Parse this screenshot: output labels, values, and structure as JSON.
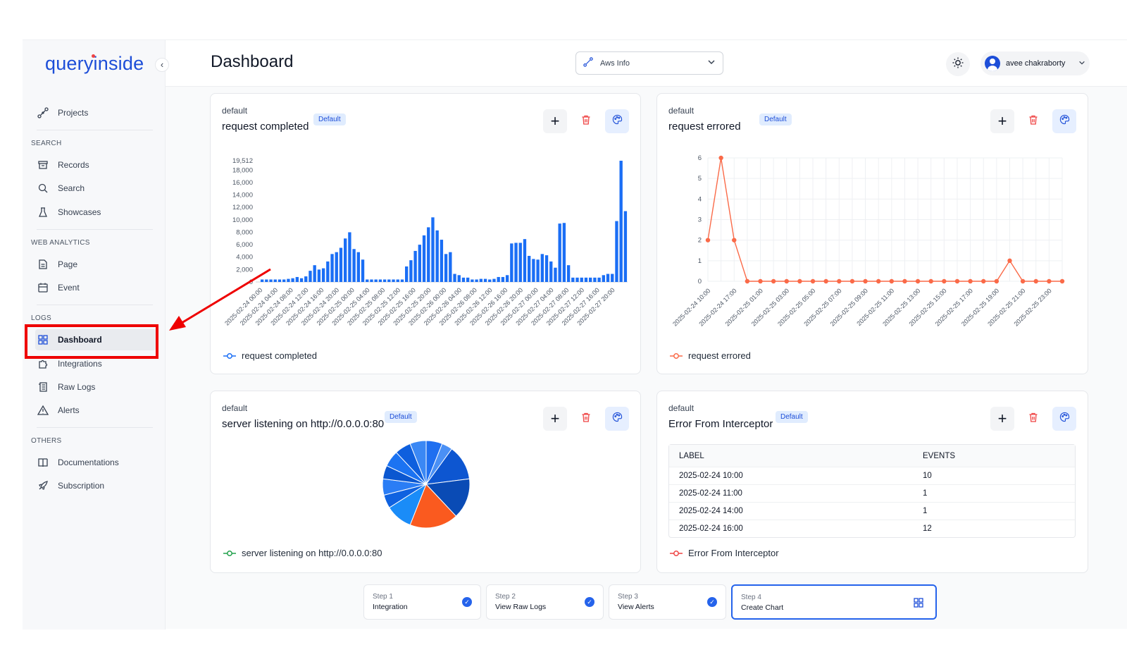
{
  "app": {
    "logo_text": "queryinside"
  },
  "sidebar": {
    "items": [
      {
        "label": "Projects",
        "icon": "flow-icon"
      }
    ],
    "sections": [
      {
        "title": "SEARCH",
        "items": [
          {
            "label": "Records",
            "icon": "archive-icon"
          },
          {
            "label": "Search",
            "icon": "search-icon"
          },
          {
            "label": "Showcases",
            "icon": "flask-icon"
          }
        ]
      },
      {
        "title": "WEB ANALYTICS",
        "items": [
          {
            "label": "Page",
            "icon": "document-icon"
          },
          {
            "label": "Event",
            "icon": "calendar-icon"
          }
        ]
      },
      {
        "title": "LOGS",
        "items": [
          {
            "label": "Dashboard",
            "icon": "dashboard-icon",
            "active": true
          },
          {
            "label": "Integrations",
            "icon": "puzzle-icon"
          },
          {
            "label": "Raw Logs",
            "icon": "scroll-icon"
          },
          {
            "label": "Alerts",
            "icon": "warning-icon"
          }
        ]
      },
      {
        "title": "OTHERS",
        "items": [
          {
            "label": "Documentations",
            "icon": "book-icon"
          },
          {
            "label": "Subscription",
            "icon": "rocket-icon"
          }
        ]
      }
    ]
  },
  "header": {
    "title": "Dashboard",
    "project_select": "Aws Info",
    "user_name": "avee chakraborty"
  },
  "colors": {
    "accent": "#1d4ed8",
    "bar": "#1a6ef5",
    "line": "#fa6a48",
    "highlight": "#ee0000"
  },
  "cards": [
    {
      "workspace": "default",
      "title": "request completed",
      "badge": "Default",
      "legend": "request completed"
    },
    {
      "workspace": "default",
      "title": "request errored",
      "badge": "Default",
      "legend": "request errored"
    },
    {
      "workspace": "default",
      "title": "server listening on http://0.0.0.0:80",
      "badge": "Default",
      "legend": "server listening on http://0.0.0.0:80"
    },
    {
      "workspace": "default",
      "title": "Error From Interceptor",
      "badge": "Default",
      "legend": "Error From Interceptor"
    }
  ],
  "table": {
    "headers": [
      "LABEL",
      "EVENTS"
    ],
    "rows": [
      [
        "2025-02-24 10:00",
        "10"
      ],
      [
        "2025-02-24 11:00",
        "1"
      ],
      [
        "2025-02-24 14:00",
        "1"
      ],
      [
        "2025-02-24 16:00",
        "12"
      ]
    ]
  },
  "steps": [
    {
      "step": "Step 1",
      "label": "Integration",
      "done": true
    },
    {
      "step": "Step 2",
      "label": "View Raw Logs",
      "done": true
    },
    {
      "step": "Step 3",
      "label": "View Alerts",
      "done": true
    },
    {
      "step": "Step 4",
      "label": "Create Chart",
      "done": false
    }
  ],
  "chart_data": [
    {
      "type": "bar",
      "title": "request completed",
      "ylim": [
        0,
        19512
      ],
      "yticks": [
        "19,512",
        "18,000",
        "16,000",
        "14,000",
        "12,000",
        "10,000",
        "8,000",
        "6,000",
        "4,000",
        "2,000",
        "0"
      ],
      "xticks": [
        "2025-02-24 00:00",
        "2025-02-24 04:00",
        "2025-02-24 08:00",
        "2025-02-24 12:00",
        "2025-02-24 16:00",
        "2025-02-24 20:00",
        "2025-02-25 00:00",
        "2025-02-25 04:00",
        "2025-02-25 08:00",
        "2025-02-25 12:00",
        "2025-02-25 16:00",
        "2025-02-25 20:00",
        "2025-02-26 00:00",
        "2025-02-26 04:00",
        "2025-02-26 08:00",
        "2025-02-26 12:00",
        "2025-02-26 16:00",
        "2025-02-26 20:00",
        "2025-02-27 00:00",
        "2025-02-27 04:00",
        "2025-02-27 08:00",
        "2025-02-27 12:00",
        "2025-02-27 16:00",
        "2025-02-27 20:00"
      ],
      "values": [
        400,
        400,
        400,
        400,
        400,
        400,
        500,
        600,
        800,
        600,
        900,
        1800,
        2700,
        2000,
        2200,
        3300,
        4500,
        4800,
        5500,
        7000,
        8000,
        5300,
        4800,
        3600,
        400,
        400,
        400,
        400,
        400,
        400,
        400,
        400,
        400,
        2500,
        3500,
        5000,
        6000,
        7500,
        8800,
        10400,
        8300,
        6800,
        4500,
        4800,
        1300,
        1100,
        700,
        700,
        400,
        400,
        500,
        500,
        400,
        500,
        800,
        800,
        1100,
        6200,
        6300,
        6300,
        6900,
        4200,
        3700,
        3600,
        4500,
        4300,
        3300,
        2300,
        9400,
        9500,
        2700,
        700,
        700,
        700,
        700,
        700,
        700,
        700,
        1100,
        1300,
        1300,
        9800,
        19512,
        11400
      ]
    },
    {
      "type": "line",
      "title": "request errored",
      "ylim": [
        0,
        6
      ],
      "yticks": [
        "6",
        "5",
        "4",
        "3",
        "2",
        "1",
        "0"
      ],
      "xticks": [
        "2025-02-24 10:00",
        "2025-02-24 17:00",
        "2025-02-25 01:00",
        "2025-02-25 03:00",
        "2025-02-25 05:00",
        "2025-02-25 07:00",
        "2025-02-25 09:00",
        "2025-02-25 11:00",
        "2025-02-25 13:00",
        "2025-02-25 15:00",
        "2025-02-25 17:00",
        "2025-02-25 19:00",
        "2025-02-25 21:00",
        "2025-02-25 23:00"
      ],
      "values": [
        2,
        6,
        2,
        0,
        0,
        0,
        0,
        0,
        0,
        0,
        0,
        0,
        0,
        0,
        0,
        0,
        0,
        0,
        0,
        0,
        0,
        0,
        0,
        1,
        0,
        0,
        0,
        0
      ]
    },
    {
      "type": "pie",
      "title": "server listening on http://0.0.0.0:80",
      "values": [
        6,
        4,
        13,
        15,
        18,
        10,
        5,
        6,
        5,
        6,
        6,
        6
      ],
      "colors": [
        "#1f6ff0",
        "#4a90f5",
        "#0d56d1",
        "#0a4bb5",
        "#fa5a1f",
        "#1a8cf8",
        "#0f62e0",
        "#2a7df5",
        "#0b57d0",
        "#1b73f2",
        "#0e5fde",
        "#3b88f4"
      ]
    }
  ]
}
